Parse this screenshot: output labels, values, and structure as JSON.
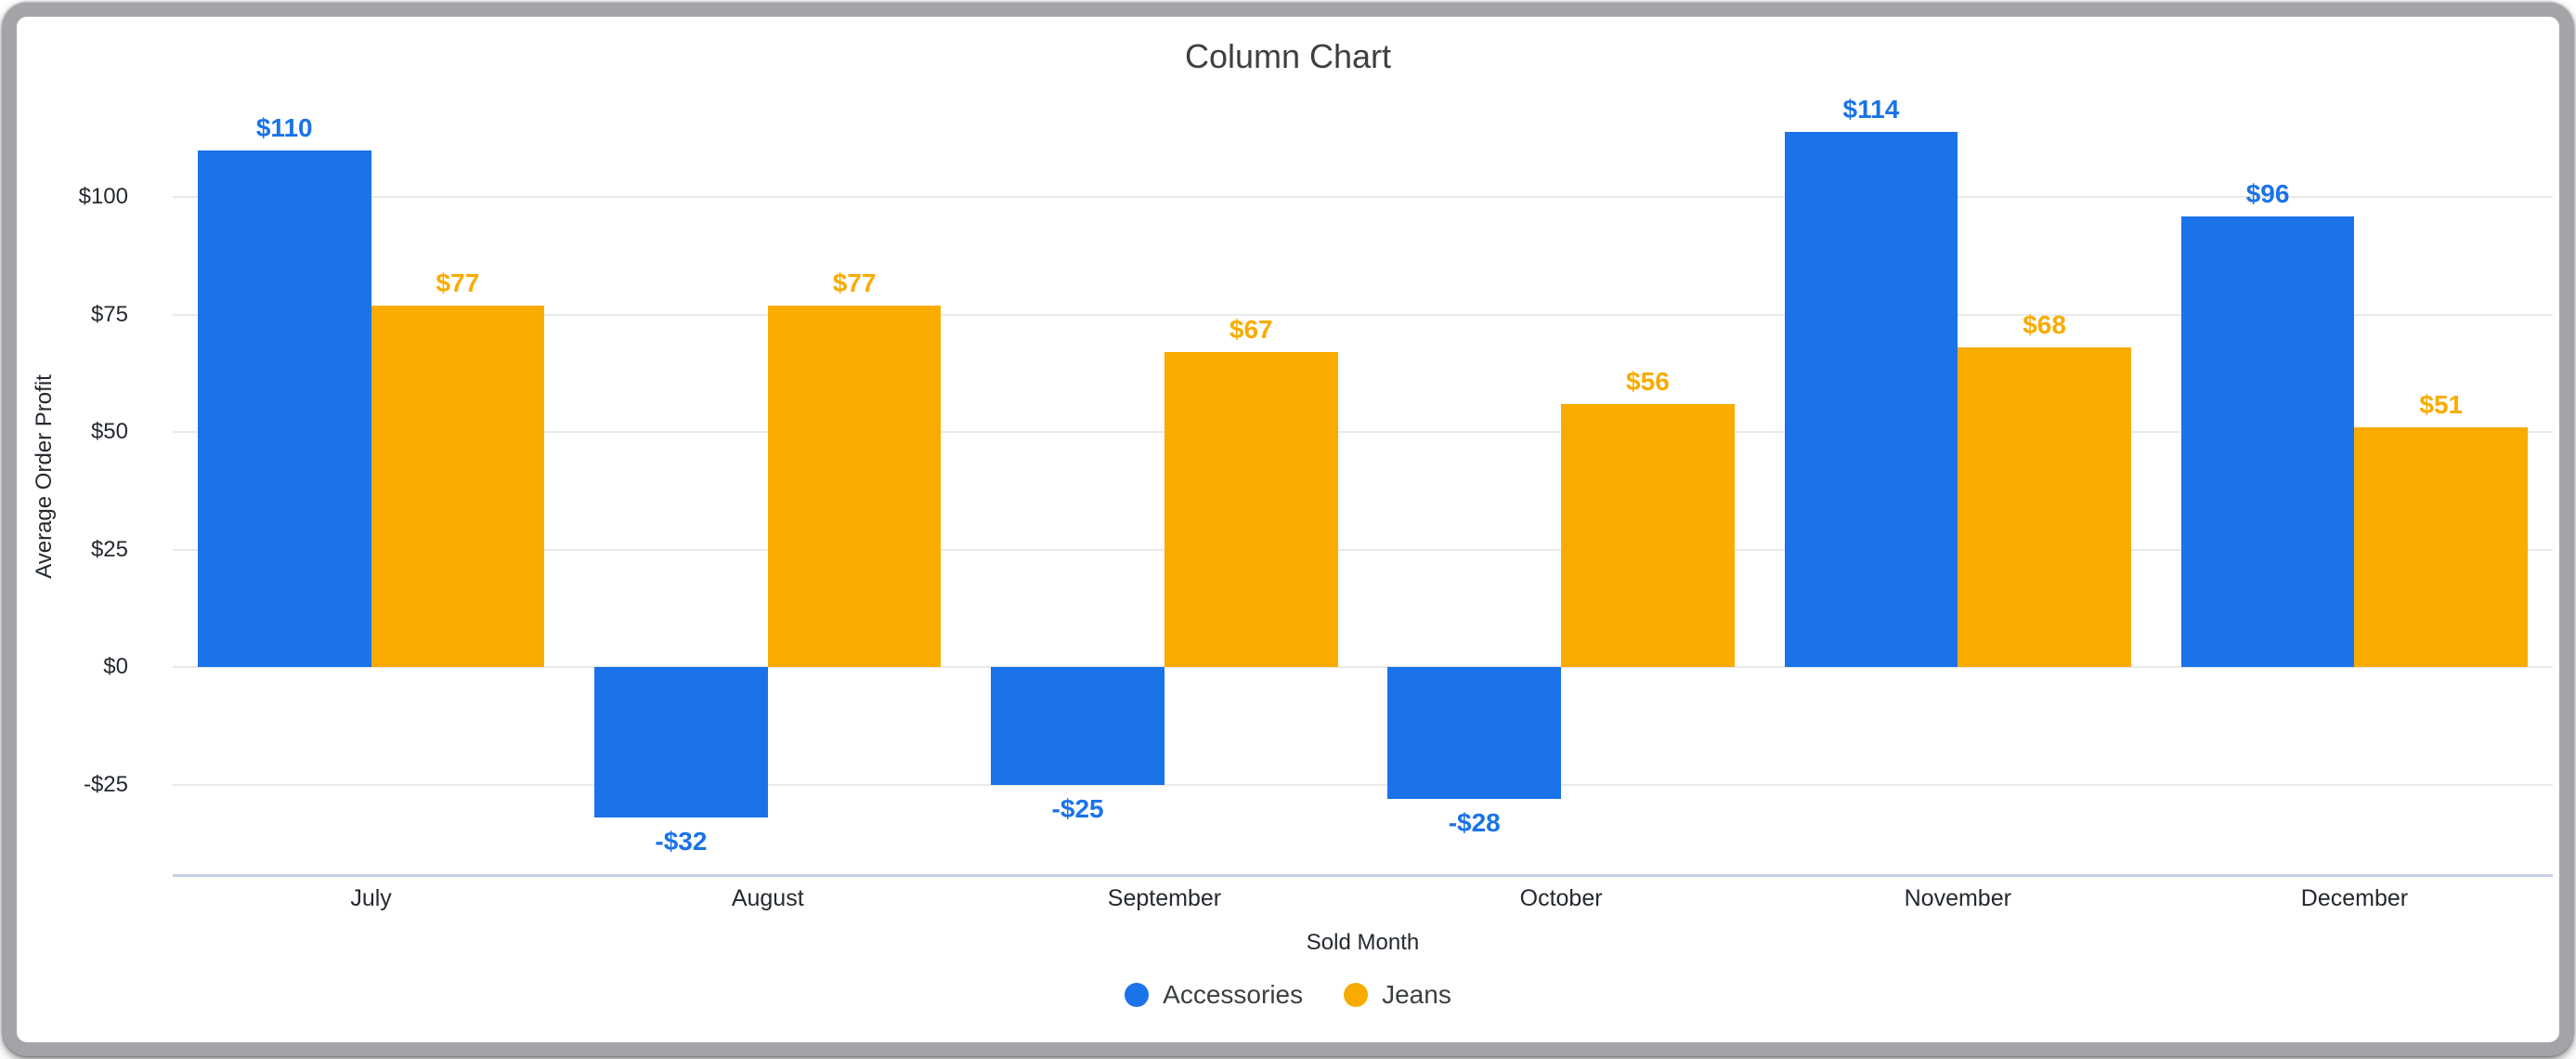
{
  "window": {
    "frame_color": "#a4a4a8",
    "background_color": "#ffffff"
  },
  "chart_data": {
    "type": "bar",
    "title": "Column Chart",
    "xlabel": "Sold Month",
    "ylabel": "Average Order Profit",
    "categories": [
      "July",
      "August",
      "September",
      "October",
      "November",
      "December"
    ],
    "series": [
      {
        "name": "Accessories",
        "color": "#1a73e8",
        "values": [
          110,
          -32,
          -25,
          -28,
          114,
          96
        ],
        "data_labels": [
          "$110",
          "-$32",
          "-$25",
          "-$28",
          "$114",
          "$96"
        ]
      },
      {
        "name": "Jeans",
        "color": "#f9ab00",
        "values": [
          77,
          77,
          67,
          56,
          68,
          51
        ],
        "data_labels": [
          "$77",
          "$77",
          "$67",
          "$56",
          "$68",
          "$51"
        ]
      }
    ],
    "y_axis": {
      "min": -44,
      "max": 125,
      "ticks": [
        {
          "value": 100,
          "label": "$100"
        },
        {
          "value": 75,
          "label": "$75"
        },
        {
          "value": 50,
          "label": "$50"
        },
        {
          "value": 25,
          "label": "$25"
        },
        {
          "value": 0,
          "label": "$0"
        },
        {
          "value": -25,
          "label": "-$25"
        }
      ]
    },
    "grid": "on",
    "legend_position": "bottom",
    "gridline_color": "#e9e9e9",
    "baseline_color": "#c9d1e8"
  }
}
